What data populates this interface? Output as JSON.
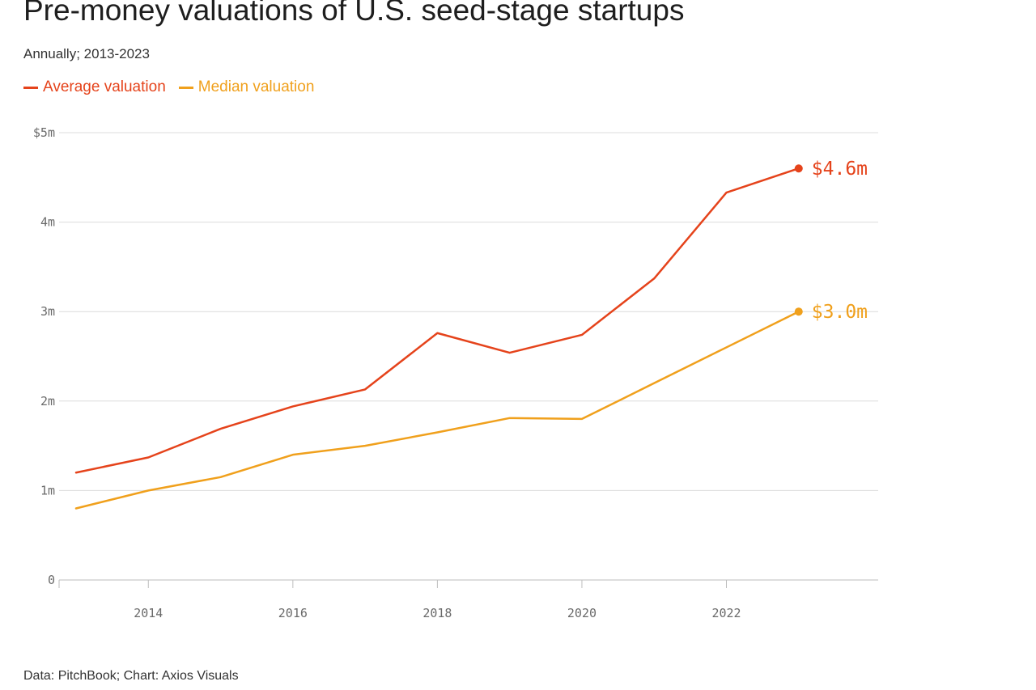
{
  "header": {
    "title": "Pre-money valuations of U.S. seed-stage startups",
    "subtitle": "Annually; 2013-2023"
  },
  "footer": {
    "source": "Data: PitchBook; Chart: Axios Visuals"
  },
  "chart_data": {
    "type": "line",
    "title": "Pre-money valuations of U.S. seed-stage startups",
    "subtitle": "Annually; 2013-2023",
    "xlabel": "",
    "ylabel": "",
    "x": [
      2013,
      2014,
      2015,
      2016,
      2017,
      2018,
      2019,
      2020,
      2021,
      2022,
      2023
    ],
    "xlim": [
      2013,
      2024.1
    ],
    "ylim": [
      0,
      5
    ],
    "x_ticks": [
      2014,
      2016,
      2018,
      2020,
      2022
    ],
    "x_tick_labels": [
      "2014",
      "2016",
      "2018",
      "2020",
      "2022"
    ],
    "y_ticks": [
      0,
      1,
      2,
      3,
      4,
      5
    ],
    "y_tick_labels": [
      "0",
      "1m",
      "2m",
      "3m",
      "4m",
      "$5m"
    ],
    "grid": true,
    "legend_position": "top-left",
    "series": [
      {
        "name": "Average valuation",
        "color": "#e5431b",
        "values": [
          1.2,
          1.37,
          1.69,
          1.94,
          2.13,
          2.76,
          2.54,
          2.74,
          3.37,
          4.33,
          4.6
        ],
        "end_label": "$4.6m"
      },
      {
        "name": "Median valuation",
        "color": "#f0a01c",
        "values": [
          0.8,
          1.0,
          1.15,
          1.4,
          1.5,
          1.65,
          1.81,
          1.8,
          2.2,
          2.6,
          3.0
        ],
        "end_label": "$3.0m"
      }
    ]
  }
}
